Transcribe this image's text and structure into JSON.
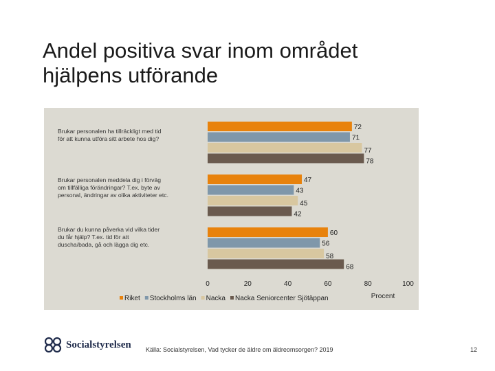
{
  "slide": {
    "title_line1": "Andel positiva svar inom området",
    "title_line2": "hjälpens utförande",
    "source": "Källa: Socialstyrelsen, Vad tycker de äldre om äldreomsorgen? 2019",
    "page_number": "12",
    "logo_text": "Socialstyrelsen"
  },
  "colors": {
    "Riket": "#e8820c",
    "Stockholms län": "#7f97aa",
    "Nacka": "#d8c7a0",
    "Nacka Seniorcenter Sjötäppan": "#6a5a4e"
  },
  "chart_data": {
    "type": "bar",
    "orientation": "horizontal",
    "categories": [
      [
        "Brukar personalen ha tillräckligt med tid",
        "för att kunna utföra sitt arbete hos dig?"
      ],
      [
        "Brukar personalen meddela dig i förväg",
        "om tillfälliga förändringar? T.ex. byte av",
        "personal, ändringar av olika aktiviteter etc."
      ],
      [
        "Brukar du kunna påverka vid vilka tider",
        "du får hjälp? T.ex. tid för att",
        "duscha/bada, gå och lägga dig etc."
      ]
    ],
    "series": [
      {
        "name": "Riket",
        "values": [
          72,
          47,
          60
        ]
      },
      {
        "name": "Stockholms län",
        "values": [
          71,
          43,
          56
        ]
      },
      {
        "name": "Nacka",
        "values": [
          77,
          45,
          58
        ]
      },
      {
        "name": "Nacka Seniorcenter Sjötäppan",
        "values": [
          78,
          42,
          68
        ]
      }
    ],
    "xlim": [
      0,
      100
    ],
    "xticks": [
      "0",
      "20",
      "40",
      "60",
      "80",
      "100"
    ],
    "xlabel": "Procent",
    "legend_position": "bottom"
  }
}
